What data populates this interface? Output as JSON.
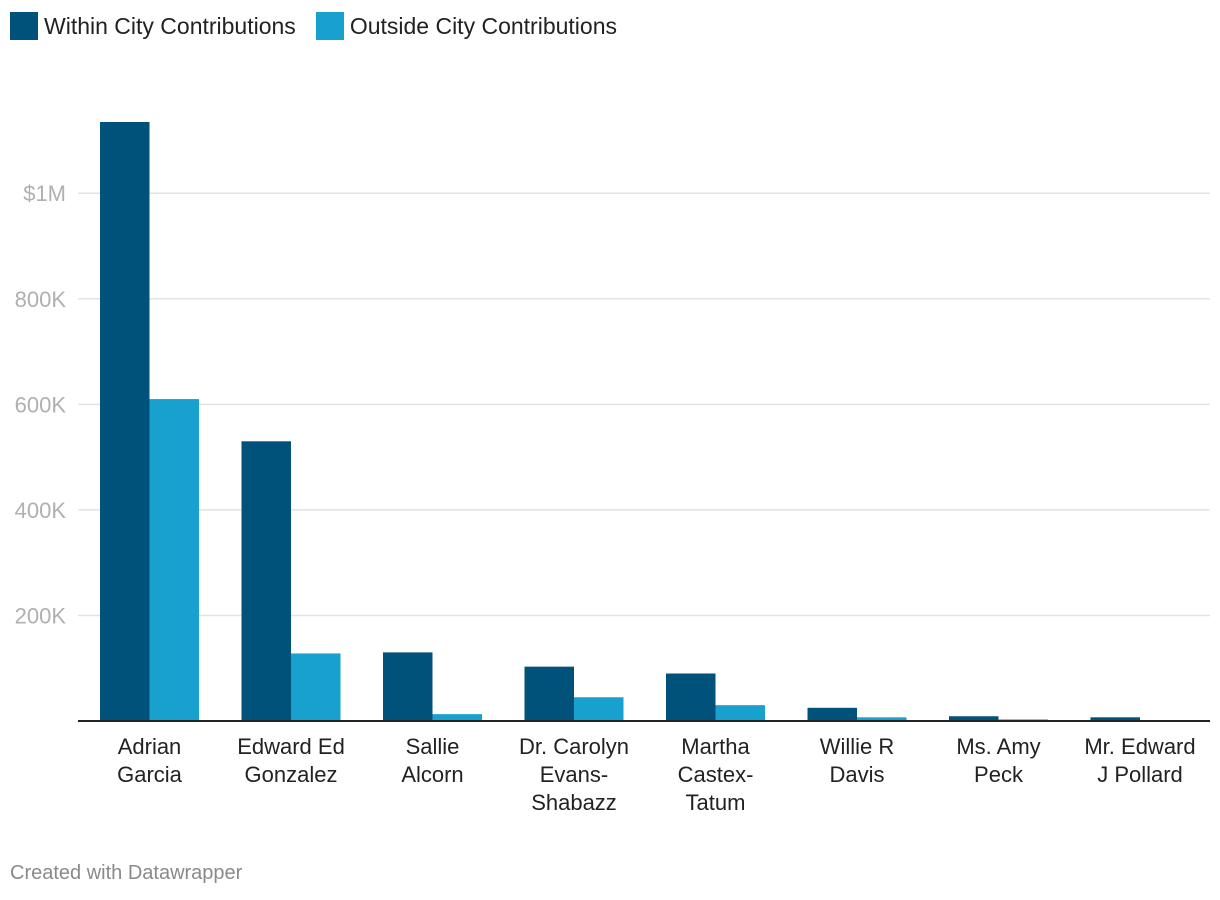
{
  "legend": [
    {
      "label": "Within City Contributions",
      "color": "#00527a"
    },
    {
      "label": "Outside City Contributions",
      "color": "#18a1cf"
    }
  ],
  "footer": "Created with Datawrapper",
  "chart_data": {
    "type": "bar",
    "categories": [
      [
        "Adrian",
        "Garcia"
      ],
      [
        "Edward Ed",
        "Gonzalez"
      ],
      [
        "Sallie",
        "Alcorn"
      ],
      [
        "Dr. Carolyn",
        "Evans-",
        "Shabazz"
      ],
      [
        "Martha",
        "Castex-",
        "Tatum"
      ],
      [
        "Willie R",
        "Davis"
      ],
      [
        "Ms. Amy",
        "Peck"
      ],
      [
        "Mr. Edward",
        "J Pollard"
      ]
    ],
    "series": [
      {
        "name": "Within City Contributions",
        "color": "#00527a",
        "values": [
          1135000,
          530000,
          130000,
          103000,
          90000,
          25000,
          9000,
          7000
        ]
      },
      {
        "name": "Outside City Contributions",
        "color": "#18a1cf",
        "values": [
          610000,
          128000,
          13000,
          45000,
          30000,
          7000,
          3000,
          0
        ]
      }
    ],
    "yticks": [
      {
        "value": 200000,
        "label": "200K"
      },
      {
        "value": 400000,
        "label": "400K"
      },
      {
        "value": 600000,
        "label": "600K"
      },
      {
        "value": 800000,
        "label": "800K"
      },
      {
        "value": 1000000,
        "label": "$1M"
      }
    ],
    "ylim": [
      0,
      1135000
    ],
    "grid": true,
    "legend_position": "top-left"
  }
}
